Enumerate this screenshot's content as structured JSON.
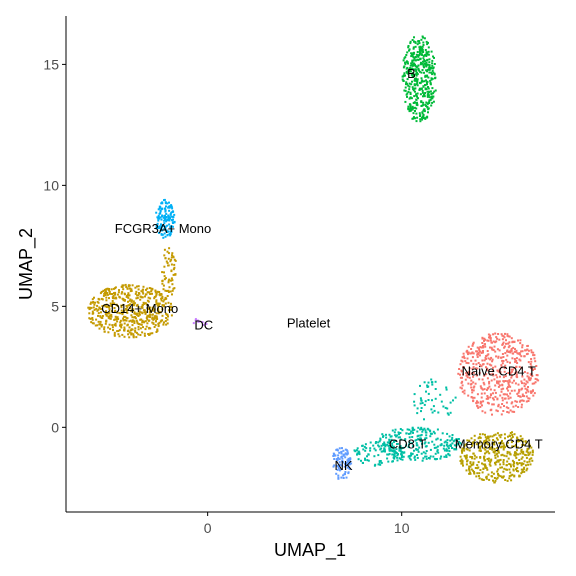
{
  "chart_data": {
    "type": "scatter",
    "title": "",
    "xlabel": "UMAP_1",
    "ylabel": "UMAP_2",
    "xlim": [
      -7.3,
      17.9
    ],
    "ylim": [
      -3.5,
      17.0
    ],
    "xticks": [
      {
        "value": 0,
        "label": "0"
      },
      {
        "value": 10,
        "label": "10"
      }
    ],
    "yticks": [
      {
        "value": 0,
        "label": "0"
      },
      {
        "value": 5,
        "label": "5"
      },
      {
        "value": 10,
        "label": "10"
      },
      {
        "value": 15,
        "label": "15"
      }
    ],
    "grid": false,
    "legend": "none",
    "series": [
      {
        "name": "Naive CD4 T",
        "color": "#F8766D",
        "regions": [
          {
            "cx": 15.0,
            "cy": 2.2,
            "rx": 2.1,
            "ry": 1.7,
            "n": 520
          }
        ],
        "label_pos": [
          15.0,
          2.3
        ]
      },
      {
        "name": "Memory CD4 T",
        "color": "#B79F00",
        "regions": [
          {
            "cx": 14.9,
            "cy": -1.2,
            "rx": 1.9,
            "ry": 1.1,
            "n": 380
          }
        ],
        "label_pos": [
          15.0,
          -0.7
        ]
      },
      {
        "name": "CD14+ Mono",
        "color": "#C49A00",
        "regions": [
          {
            "cx": -4.0,
            "cy": 4.8,
            "rx": 2.2,
            "ry": 1.1,
            "n": 540
          },
          {
            "cx": -2.0,
            "cy": 6.4,
            "rx": 0.4,
            "ry": 1.1,
            "n": 60
          }
        ],
        "label_pos": [
          -3.5,
          4.9
        ]
      },
      {
        "name": "B",
        "color": "#00BA38",
        "regions": [
          {
            "cx": 10.9,
            "cy": 14.4,
            "rx": 0.9,
            "ry": 1.8,
            "n": 420
          }
        ],
        "label_pos": [
          10.5,
          14.6
        ]
      },
      {
        "name": "CD8 T",
        "color": "#00BFA5",
        "regions": [
          {
            "cx": 10.8,
            "cy": -0.7,
            "rx": 2.3,
            "ry": 0.7,
            "n": 260
          },
          {
            "cx": 8.8,
            "cy": -1.1,
            "rx": 1.3,
            "ry": 0.5,
            "n": 80
          },
          {
            "cx": 11.7,
            "cy": 1.1,
            "rx": 1.1,
            "ry": 0.9,
            "n": 50
          }
        ],
        "label_pos": [
          10.3,
          -0.7
        ]
      },
      {
        "name": "FCGR3A+ Mono",
        "color": "#00B0F6",
        "regions": [
          {
            "cx": -2.2,
            "cy": 8.6,
            "rx": 0.5,
            "ry": 0.8,
            "n": 130
          }
        ],
        "label_pos": [
          -2.3,
          8.2
        ]
      },
      {
        "name": "NK",
        "color": "#619CFF",
        "regions": [
          {
            "cx": 6.9,
            "cy": -1.5,
            "rx": 0.5,
            "ry": 0.7,
            "n": 90
          }
        ],
        "label_pos": [
          7.0,
          -1.6
        ]
      },
      {
        "name": "DC",
        "color": "#C77CFF",
        "regions": [
          {
            "cx": -0.4,
            "cy": 4.35,
            "rx": 0.4,
            "ry": 0.15,
            "n": 10
          }
        ],
        "label_pos": [
          -0.2,
          4.2
        ]
      },
      {
        "name": "Platelet",
        "color": "#FF61C3",
        "regions": [],
        "label_pos": [
          5.2,
          4.3
        ]
      }
    ]
  }
}
